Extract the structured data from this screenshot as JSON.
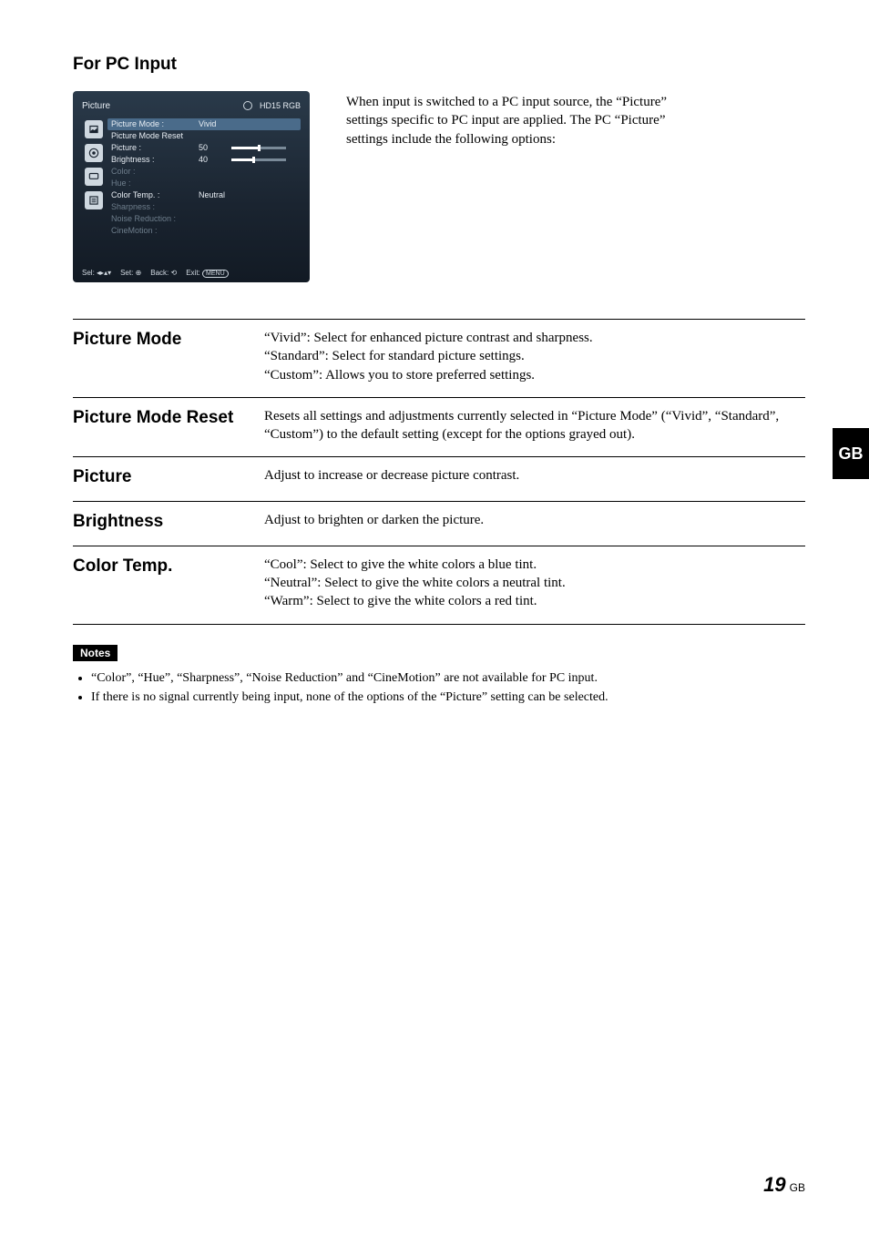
{
  "sectionTitle": "For PC Input",
  "intro": "When input is switched to a PC input source, the “Picture” settings specific to PC input are applied. The PC “Picture” settings include the following options:",
  "osd": {
    "title": "Picture",
    "source": "HD15 RGB",
    "rows": [
      {
        "label": "Picture Mode :",
        "value": "Vivid",
        "selected": true,
        "disabled": false,
        "bar": null
      },
      {
        "label": "Picture Mode Reset",
        "value": "",
        "selected": false,
        "disabled": false,
        "bar": null
      },
      {
        "label": "Picture :",
        "value": "50",
        "selected": false,
        "disabled": false,
        "bar": {
          "fill": 50,
          "max": 100
        }
      },
      {
        "label": "Brightness :",
        "value": "40",
        "selected": false,
        "disabled": false,
        "bar": {
          "fill": 40,
          "max": 100
        }
      },
      {
        "label": "Color :",
        "value": "",
        "selected": false,
        "disabled": true,
        "bar": null
      },
      {
        "label": "Hue :",
        "value": "",
        "selected": false,
        "disabled": true,
        "bar": null
      },
      {
        "label": "Color Temp. :",
        "value": "Neutral",
        "selected": false,
        "disabled": false,
        "bar": null
      },
      {
        "label": "Sharpness :",
        "value": "",
        "selected": false,
        "disabled": true,
        "bar": null
      },
      {
        "label": "Noise Reduction :",
        "value": "",
        "selected": false,
        "disabled": true,
        "bar": null
      },
      {
        "label": "CineMotion :",
        "value": "",
        "selected": false,
        "disabled": true,
        "bar": null
      }
    ],
    "footer": {
      "sel": "Sel:",
      "set": "Set:",
      "back": "Back:",
      "exit": "Exit:",
      "exitBtn": "MENU"
    }
  },
  "settings": [
    {
      "name": "Picture Mode",
      "lines": [
        "“Vivid”: Select for enhanced picture contrast and sharpness.",
        "“Standard”: Select for standard picture settings.",
        "“Custom”: Allows you to store preferred settings."
      ]
    },
    {
      "name": "Picture Mode Reset",
      "lines": [
        "Resets all settings and adjustments currently selected in “Picture Mode” (“Vivid”, “Standard”, “Custom”) to the default setting (except for the options grayed out)."
      ]
    },
    {
      "name": "Picture",
      "lines": [
        "Adjust to increase or decrease picture contrast."
      ]
    },
    {
      "name": "Brightness",
      "lines": [
        "Adjust to brighten or darken the picture."
      ]
    },
    {
      "name": "Color Temp.",
      "lines": [
        "“Cool”: Select to give the white colors a blue tint.",
        "“Neutral”: Select to give the white colors a neutral tint.",
        "“Warm”: Select to give the white colors a red tint."
      ]
    }
  ],
  "notes": {
    "badge": "Notes",
    "items": [
      "“Color”, “Hue”, “Sharpness”, “Noise Reduction” and “CineMotion” are not available for PC input.",
      "If there is no signal currently being input, none of the options of the “Picture” setting can be selected."
    ]
  },
  "sideTab": "GB",
  "pageNumber": "19",
  "pageLang": "GB",
  "colors": {
    "osd_bg_top": "#2a3a4a",
    "osd_bg_bottom": "#121a24",
    "osd_selected_row": "#4a6b8a",
    "osd_disabled_text": "#6e7e8c",
    "osd_text": "#e8eef4",
    "rule": "#000000",
    "page_bg": "#ffffff"
  },
  "typography": {
    "body_family": "Times New Roman",
    "heading_family": "Arial",
    "section_title_pt": 19,
    "setting_name_pt": 19,
    "body_pt": 15,
    "notes_pt": 14,
    "osd_pt": 9
  }
}
